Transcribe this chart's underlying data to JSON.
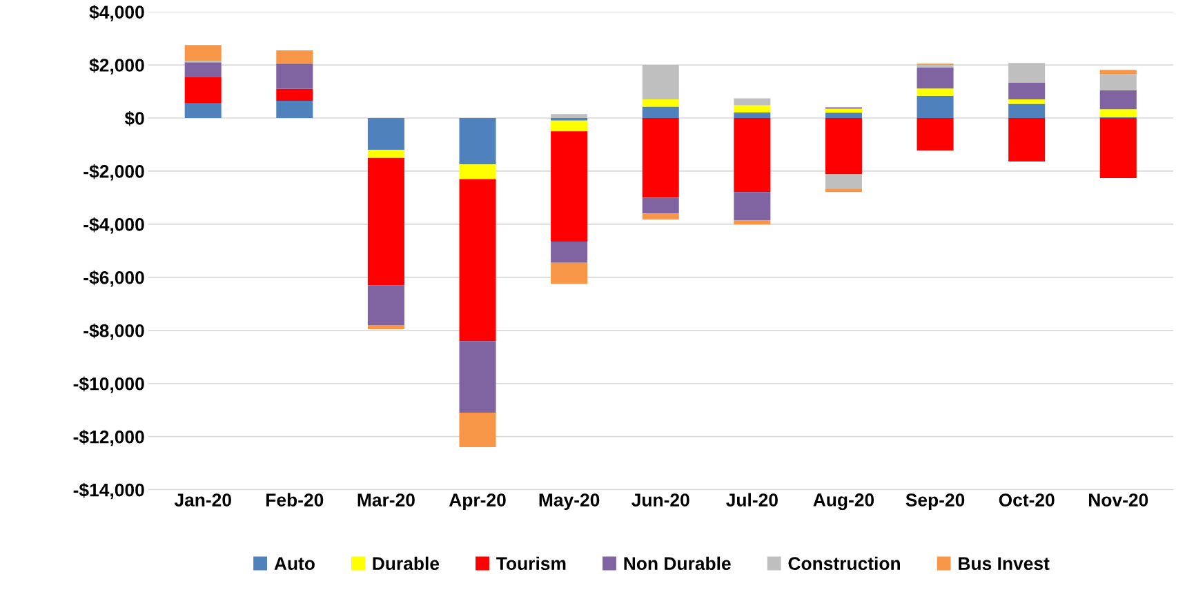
{
  "chart_data": {
    "type": "bar",
    "stacked": true,
    "categories": [
      "Jan-20",
      "Feb-20",
      "Mar-20",
      "Apr-20",
      "May-20",
      "Jun-20",
      "Jul-20",
      "Aug-20",
      "Sep-20",
      "Oct-20",
      "Nov-20"
    ],
    "series": [
      {
        "name": "Auto",
        "color": "#4f81bd",
        "values": [
          550,
          650,
          -1200,
          -1750,
          -100,
          430,
          210,
          200,
          840,
          530,
          30
        ]
      },
      {
        "name": "Durable",
        "color": "#ffff00",
        "values": [
          0,
          0,
          -300,
          -550,
          -400,
          270,
          270,
          150,
          270,
          170,
          300
        ]
      },
      {
        "name": "Tourism",
        "color": "#ff0000",
        "values": [
          1000,
          450,
          -4800,
          -6100,
          -4150,
          -3000,
          -2790,
          -2120,
          -1230,
          -1640,
          -2260
        ]
      },
      {
        "name": "Non Durable",
        "color": "#8064a2",
        "values": [
          550,
          950,
          -1500,
          -2700,
          -800,
          -600,
          -1070,
          50,
          790,
          640,
          710
        ]
      },
      {
        "name": "Construction",
        "color": "#bfbfbf",
        "values": [
          50,
          0,
          0,
          0,
          150,
          1300,
          260,
          -540,
          100,
          730,
          610
        ]
      },
      {
        "name": "Bus Invest",
        "color": "#f79646",
        "values": [
          600,
          500,
          -150,
          -1300,
          -800,
          -230,
          -150,
          -130,
          50,
          0,
          160
        ]
      }
    ],
    "ylim": [
      -14000,
      4000
    ],
    "yticks": [
      {
        "value": -14000,
        "label": "-$14,000"
      },
      {
        "value": -12000,
        "label": "-$12,000"
      },
      {
        "value": -10000,
        "label": "-$10,000"
      },
      {
        "value": -8000,
        "label": "-$8,000"
      },
      {
        "value": -6000,
        "label": "-$6,000"
      },
      {
        "value": -4000,
        "label": "-$4,000"
      },
      {
        "value": -2000,
        "label": "-$2,000"
      },
      {
        "value": 0,
        "label": "$0"
      },
      {
        "value": 2000,
        "label": "$2,000"
      },
      {
        "value": 4000,
        "label": "$4,000"
      }
    ],
    "grid": "y",
    "legend": "bottom"
  }
}
